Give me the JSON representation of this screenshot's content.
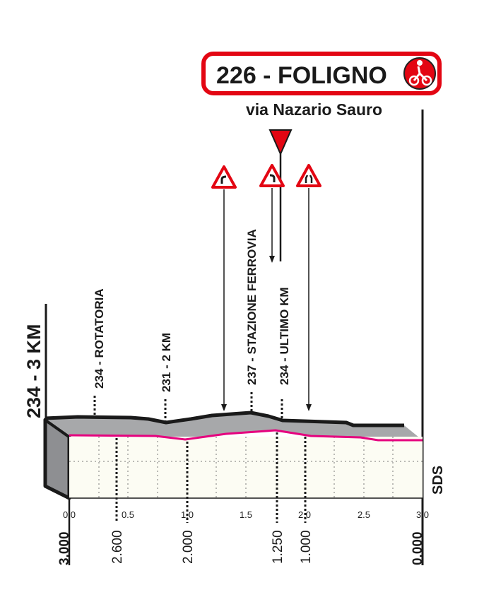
{
  "finish": {
    "title": "226 - FOLIGNO",
    "street": "via Nazario Sauro",
    "icon": "cyclist-finish-icon",
    "accent_color": "#e30613"
  },
  "left_label": "234 - 3 KM",
  "right_label": "SDS",
  "profile_colors": {
    "road_top": "#a7a8aa",
    "front_line": "#e5007e",
    "body": "#fcfcf3"
  },
  "points": [
    {
      "label": "234 - ROTATORIA"
    },
    {
      "label": "231 - 2 KM"
    },
    {
      "label": "237 - STAZIONE FERROVIA"
    },
    {
      "label": "234 - ULTIMO KM"
    }
  ],
  "signs": [
    "curve-left-sign-icon",
    "curve-right-sign-icon",
    "road-narrows-sign-icon"
  ],
  "km_ticks": [
    "0.0",
    "0.5",
    "1.0",
    "1.5",
    "2.0",
    "2.5",
    "3.0"
  ],
  "distances_to_go": [
    "3.000",
    "2.600",
    "2.000",
    "1.250",
    "1.000",
    "0.000"
  ]
}
